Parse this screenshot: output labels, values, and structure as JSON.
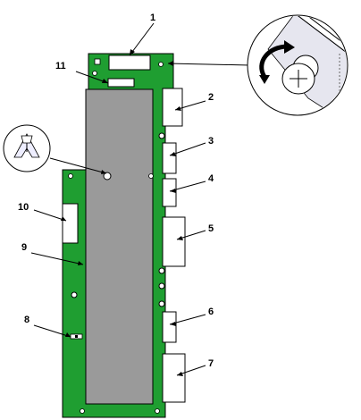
{
  "colors": {
    "board": "#1f9e31",
    "panel": "#9a9a9a",
    "cutout": "#ffffff",
    "outline": "#000000",
    "zoom_fill": "#e6e6ef"
  },
  "callouts": [
    {
      "id": "c1",
      "label": "1"
    },
    {
      "id": "c2",
      "label": "2"
    },
    {
      "id": "c3",
      "label": "3"
    },
    {
      "id": "c4",
      "label": "4"
    },
    {
      "id": "c5",
      "label": "5"
    },
    {
      "id": "c6",
      "label": "6"
    },
    {
      "id": "c7",
      "label": "7"
    },
    {
      "id": "c8",
      "label": "8"
    },
    {
      "id": "c9",
      "label": "9"
    },
    {
      "id": "c10",
      "label": "10"
    },
    {
      "id": "c11",
      "label": "11"
    }
  ],
  "icons": {
    "screw_detail": "screw-rotate-icon",
    "standoff_detail": "standoff-clip-icon"
  }
}
